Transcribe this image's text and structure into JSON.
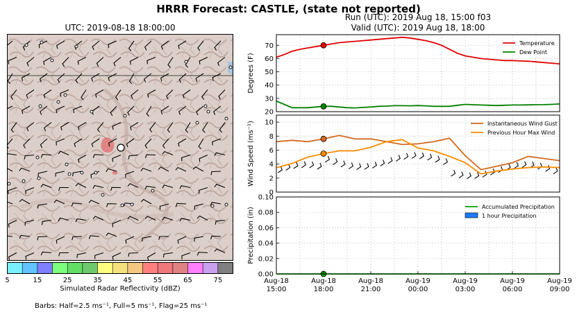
{
  "figure": {
    "suptitle": "HRRR Forecast: CASTLE, (state not reported)",
    "run": "Run (UTC): 2019 Aug 18, 15:00 f03",
    "valid": "Valid (UTC): 2019 Aug 18, 18:00",
    "map_title": "UTC: 2019-08-18 18:00:00",
    "barbs_note": "Barbs: Half=2.5 ms⁻¹, Full=5 ms⁻¹, Flag=25 ms⁻¹"
  },
  "colorbar": {
    "title": "Simulated Radar Reflectivity (dBZ)",
    "ticks": [
      "5",
      "15",
      "25",
      "35",
      "45",
      "55",
      "65",
      "75"
    ],
    "colors": [
      "#78f0ff",
      "#62c3ff",
      "#7f7fff",
      "#7cff7c",
      "#63dd63",
      "#6ec86e",
      "#ffff7f",
      "#f5e27f",
      "#f5c87f",
      "#ff7f7f",
      "#f0787a",
      "#e18282",
      "#ff7fff",
      "#c8a0f0",
      "#808080"
    ]
  },
  "chart_data": [
    {
      "type": "line",
      "ylabel": "Degrees (F)",
      "ylim": [
        20,
        78
      ],
      "yticks": [
        "20",
        "30",
        "40",
        "50",
        "60",
        "70"
      ],
      "x_hours": [
        0,
        0.5,
        1,
        1.5,
        2,
        2.5,
        3,
        3.5,
        4,
        4.5,
        5,
        5.5,
        6,
        6.5,
        7,
        7.5,
        8,
        8.5,
        9,
        9.5,
        10,
        10.5,
        11,
        11.5,
        12,
        12.5,
        13,
        13.5,
        14,
        14.5,
        15,
        15.5,
        16,
        16.5,
        17,
        17.5,
        18
      ],
      "series": [
        {
          "name": "Temperature",
          "color": "#e00000",
          "values": [
            61,
            63,
            65.5,
            67,
            68,
            69,
            70,
            71,
            72,
            72.5,
            73,
            73.5,
            74,
            74.5,
            75,
            75.5,
            76,
            75.5,
            74.5,
            73.5,
            72,
            70,
            67,
            64,
            62,
            61,
            60,
            59.5,
            59,
            58.5,
            58.5,
            58.2,
            58,
            57.5,
            57,
            56.5,
            56
          ]
        },
        {
          "name": "Dew Point",
          "color": "#008000",
          "values": [
            28,
            25.5,
            23,
            23,
            23,
            23.5,
            24,
            24,
            23.5,
            23,
            22.8,
            23.2,
            23.5,
            24,
            24.2,
            24.5,
            24.5,
            24.4,
            24.6,
            24.4,
            24,
            24,
            24,
            24.8,
            25.5,
            25.2,
            25,
            24.8,
            24.6,
            24.8,
            25,
            25,
            25.1,
            25.2,
            25.3,
            25.5,
            25.8
          ]
        }
      ],
      "markers": [
        {
          "x": 3,
          "y": 70,
          "color": "#e00000"
        },
        {
          "x": 3,
          "y": 24,
          "color": "#008000"
        }
      ],
      "legend": "top-right"
    },
    {
      "type": "line",
      "ylabel": "Wind Speed (ms⁻¹)",
      "ylim": [
        0,
        11
      ],
      "yticks": [
        "0",
        "2",
        "4",
        "6",
        "8",
        "10"
      ],
      "x_hours": [
        0,
        1,
        2,
        3,
        4,
        5,
        6,
        7,
        8,
        9,
        10,
        11,
        12,
        13,
        14,
        15,
        16,
        17,
        18
      ],
      "series": [
        {
          "name": "Instantaneous Wind Gust",
          "color": "#d2691e",
          "values": [
            7.2,
            7.4,
            7.2,
            7.6,
            8.1,
            7.6,
            7.6,
            7.2,
            6.8,
            6.9,
            7.2,
            7.7,
            5.2,
            3.2,
            3.7,
            4.2,
            5.1,
            4.8,
            4.5
          ]
        },
        {
          "name": "Previous Hour Max Wind",
          "color": "#ff8c00",
          "values": [
            3.5,
            4.1,
            5.0,
            5.5,
            5.9,
            5.9,
            6.4,
            7.2,
            7.5,
            6.3,
            5.9,
            5.1,
            4.2,
            2.6,
            3.0,
            3.3,
            3.5,
            3.6,
            3.5
          ]
        }
      ],
      "markers": [
        {
          "x": 3,
          "y": 7.6,
          "color": "#d2691e"
        },
        {
          "x": 3,
          "y": 5.5,
          "color": "#ff8c00"
        }
      ],
      "legend": "top-right"
    },
    {
      "type": "line",
      "ylabel": "Precipitation (in)",
      "ylim": [
        0,
        0.1
      ],
      "yticks": [
        "0.00",
        "0.02",
        "0.04",
        "0.06",
        "0.08",
        "0.10"
      ],
      "x_hours": [
        0,
        18
      ],
      "series": [
        {
          "name": "Accumulated Precipitation",
          "color": "#00a000",
          "values": [
            0,
            0
          ]
        },
        {
          "name": "1 hour Precipitation",
          "color": "#1e78ff",
          "values": [
            0,
            0
          ],
          "style": "bar"
        }
      ],
      "markers": [
        {
          "x": 3,
          "y": 0,
          "color": "#00a000"
        }
      ],
      "xticks": [
        {
          "x": 0,
          "l1": "Aug-18",
          "l2": "15:00"
        },
        {
          "x": 3,
          "l1": "Aug-18",
          "l2": "18:00"
        },
        {
          "x": 6,
          "l1": "Aug-18",
          "l2": "21:00"
        },
        {
          "x": 9,
          "l1": "Aug-19",
          "l2": "00:00"
        },
        {
          "x": 12,
          "l1": "Aug-19",
          "l2": "03:00"
        },
        {
          "x": 15,
          "l1": "Aug-19",
          "l2": "06:00"
        },
        {
          "x": 18,
          "l1": "Aug-19",
          "l2": "09:00"
        }
      ],
      "legend": "top-right"
    }
  ]
}
